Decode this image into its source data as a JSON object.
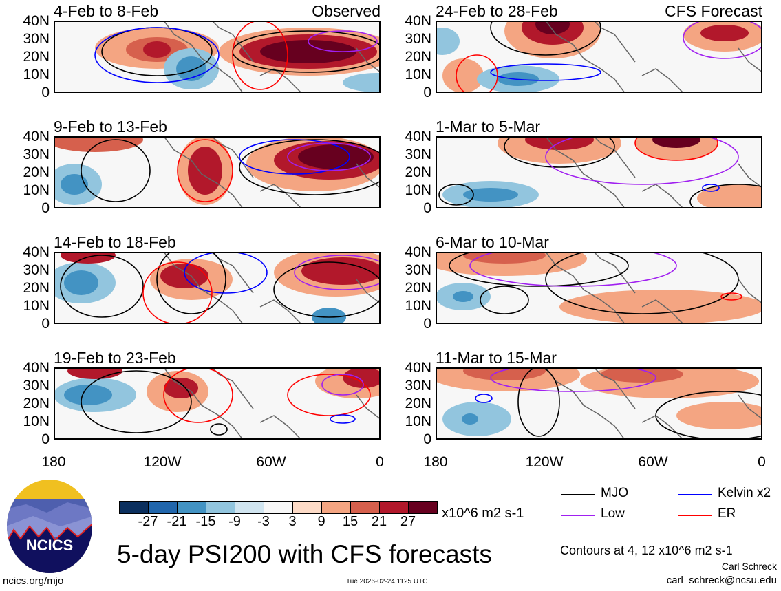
{
  "panels_left": [
    {
      "title": "4-Feb to 8-Feb",
      "tag": "Observed"
    },
    {
      "title": "9-Feb to 13-Feb"
    },
    {
      "title": "14-Feb to 18-Feb"
    },
    {
      "title": "19-Feb to 23-Feb"
    }
  ],
  "panels_right": [
    {
      "title": "24-Feb to 28-Feb",
      "tag": "CFS Forecast"
    },
    {
      "title": "1-Mar to 5-Mar"
    },
    {
      "title": "6-Mar to 10-Mar"
    },
    {
      "title": "11-Mar to 15-Mar"
    }
  ],
  "y_ticks": [
    "40N",
    "30N",
    "20N",
    "10N",
    "0"
  ],
  "x_ticks": [
    "180",
    "120W",
    "60W",
    "0"
  ],
  "colorbar": {
    "colors": [
      "#0b2f5e",
      "#2166ac",
      "#4393c3",
      "#92c5de",
      "#d1e5f0",
      "#f7f7f7",
      "#fddbc7",
      "#f4a582",
      "#d6604d",
      "#b2182b",
      "#67001f"
    ],
    "labels": [
      "-27",
      "-21",
      "-15",
      "-9",
      "-3",
      "3",
      "9",
      "15",
      "21",
      "27"
    ],
    "units": "x10^6 m2 s-1"
  },
  "legend": [
    {
      "label": "MJO",
      "color": "#000000"
    },
    {
      "label": "Kelvin x2",
      "color": "#0000ff"
    },
    {
      "label": "Low",
      "color": "#a020f0"
    },
    {
      "label": "ER",
      "color": "#ff0000"
    }
  ],
  "title": "5-day PSI200 with CFS forecasts",
  "contour_note": "Contours at 4, 12 x10^6 m2 s-1",
  "author": "Carl Schreck",
  "email": "carl_schreck@ncsu.edu",
  "url": "ncics.org/mjo",
  "timestamp": "Tue 2026-02-24 1125 UTC",
  "logo_text": "NCICS"
}
